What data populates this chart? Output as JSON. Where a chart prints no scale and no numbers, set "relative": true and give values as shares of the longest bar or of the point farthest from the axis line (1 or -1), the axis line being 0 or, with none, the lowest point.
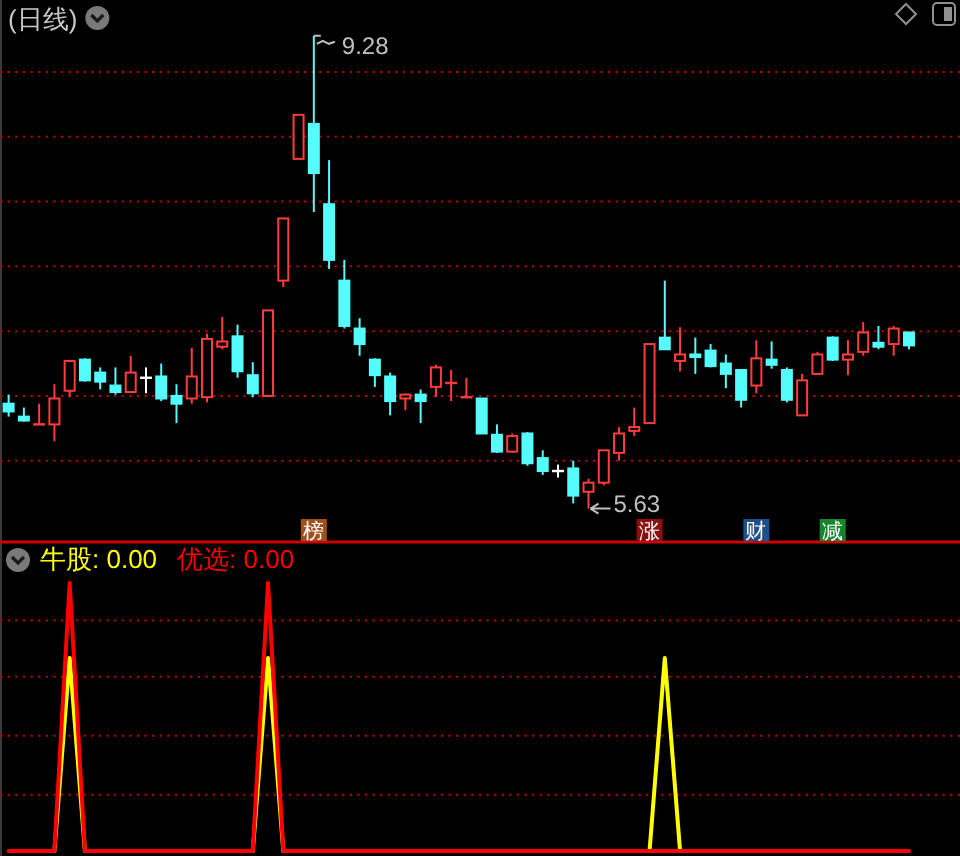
{
  "chart_data": [
    {
      "type": "candlestick",
      "title": "(日线)",
      "categories": [
        null,
        null,
        null,
        null,
        null,
        null,
        null,
        null,
        null,
        null,
        null,
        null,
        null,
        null,
        null,
        null,
        null,
        null,
        null,
        null,
        null,
        null,
        null,
        null,
        null,
        null,
        null,
        null,
        null,
        null,
        null,
        null,
        null,
        null,
        null,
        null,
        null,
        null,
        null,
        null,
        null,
        null,
        null,
        null,
        null,
        null,
        null,
        null,
        null,
        null,
        null,
        null,
        null,
        null,
        null,
        null,
        null,
        null,
        null,
        null
      ],
      "ohlc": [
        [
          6.44,
          6.51,
          6.34,
          6.38
        ],
        [
          6.34,
          6.41,
          6.3,
          6.31
        ],
        [
          6.28,
          6.44,
          6.28,
          6.28
        ],
        [
          6.28,
          6.59,
          6.15,
          6.48
        ],
        [
          6.54,
          6.77,
          6.49,
          6.77
        ],
        [
          6.78,
          6.79,
          6.61,
          6.62
        ],
        [
          6.68,
          6.72,
          6.55,
          6.61
        ],
        [
          6.58,
          6.72,
          6.51,
          6.53
        ],
        [
          6.53,
          6.81,
          6.53,
          6.68
        ],
        [
          6.64,
          6.72,
          6.52,
          6.64
        ],
        [
          6.65,
          6.75,
          6.46,
          6.48
        ],
        [
          6.5,
          6.59,
          6.29,
          6.44
        ],
        [
          6.48,
          6.87,
          6.44,
          6.65
        ],
        [
          6.49,
          6.98,
          6.45,
          6.94
        ],
        [
          6.88,
          7.11,
          6.86,
          6.92
        ],
        [
          6.96,
          7.05,
          6.64,
          6.69
        ],
        [
          6.66,
          6.76,
          6.49,
          6.52
        ],
        [
          6.5,
          7.16,
          6.5,
          7.16
        ],
        [
          7.39,
          7.87,
          7.34,
          7.87
        ],
        [
          8.33,
          8.67,
          8.33,
          8.67
        ],
        [
          8.6,
          9.28,
          7.92,
          8.22
        ],
        [
          7.98,
          8.32,
          7.48,
          7.55
        ],
        [
          7.39,
          7.55,
          7.02,
          7.04
        ],
        [
          7.02,
          7.1,
          6.81,
          6.9
        ],
        [
          6.78,
          6.79,
          6.57,
          6.66
        ],
        [
          6.65,
          6.68,
          6.35,
          6.46
        ],
        [
          6.48,
          6.52,
          6.39,
          6.51
        ],
        [
          6.51,
          6.55,
          6.29,
          6.46
        ],
        [
          6.57,
          6.74,
          6.49,
          6.72
        ],
        [
          6.6,
          6.7,
          6.46,
          6.6
        ],
        [
          6.49,
          6.64,
          6.49,
          6.49
        ],
        [
          6.48,
          6.48,
          6.21,
          6.21
        ],
        [
          6.2,
          6.28,
          6.06,
          6.07
        ],
        [
          6.07,
          6.21,
          6.06,
          6.19
        ],
        [
          6.21,
          6.22,
          5.96,
          5.98
        ],
        [
          6.02,
          6.08,
          5.89,
          5.92
        ],
        [
          5.92,
          5.97,
          5.87,
          5.92
        ],
        [
          5.94,
          6.0,
          5.67,
          5.73
        ],
        [
          5.76,
          5.86,
          5.63,
          5.83
        ],
        [
          5.83,
          6.08,
          5.81,
          6.08
        ],
        [
          6.06,
          6.26,
          6.0,
          6.21
        ],
        [
          6.23,
          6.41,
          6.19,
          6.26
        ],
        [
          6.29,
          6.9,
          6.29,
          6.9
        ],
        [
          6.95,
          7.39,
          6.86,
          6.86
        ],
        [
          6.77,
          7.03,
          6.69,
          6.82
        ],
        [
          6.82,
          6.95,
          6.67,
          6.8
        ],
        [
          6.85,
          6.9,
          6.72,
          6.73
        ],
        [
          6.75,
          6.82,
          6.56,
          6.67
        ],
        [
          6.7,
          6.7,
          6.41,
          6.47
        ],
        [
          6.58,
          6.93,
          6.52,
          6.79
        ],
        [
          6.78,
          6.92,
          6.71,
          6.74
        ],
        [
          6.7,
          6.72,
          6.45,
          6.47
        ],
        [
          6.35,
          6.67,
          6.35,
          6.62
        ],
        [
          6.67,
          6.84,
          6.67,
          6.82
        ],
        [
          6.95,
          6.96,
          6.77,
          6.78
        ],
        [
          6.78,
          6.93,
          6.66,
          6.82
        ],
        [
          6.84,
          7.07,
          6.81,
          6.99
        ],
        [
          6.91,
          7.04,
          6.86,
          6.88
        ],
        [
          6.9,
          7.04,
          6.81,
          7.02
        ],
        [
          6.99,
          6.99,
          6.86,
          6.89
        ]
      ],
      "colors": [
        "#54fcfc",
        "#54fcfc",
        "#ff3c3c",
        "#ff3c3c",
        "#ff3c3c",
        "#54fcfc",
        "#54fcfc",
        "#54fcfc",
        "#ff3c3c",
        "#ffffff",
        "#54fcfc",
        "#54fcfc",
        "#ff3c3c",
        "#ff3c3c",
        "#ff3c3c",
        "#54fcfc",
        "#54fcfc",
        "#ff3c3c",
        "#ff3c3c",
        "#ff3c3c",
        "#54fcfc",
        "#54fcfc",
        "#54fcfc",
        "#54fcfc",
        "#54fcfc",
        "#54fcfc",
        "#ff3c3c",
        "#54fcfc",
        "#ff3c3c",
        "#ff3c3c",
        "#ff3c3c",
        "#54fcfc",
        "#54fcfc",
        "#ff3c3c",
        "#54fcfc",
        "#54fcfc",
        "#ffffff",
        "#54fcfc",
        "#ff3c3c",
        "#ff3c3c",
        "#ff3c3c",
        "#ff3c3c",
        "#ff3c3c",
        "#54fcfc",
        "#ff3c3c",
        "#54fcfc",
        "#54fcfc",
        "#54fcfc",
        "#54fcfc",
        "#ff3c3c",
        "#54fcfc",
        "#54fcfc",
        "#ff3c3c",
        "#ff3c3c",
        "#54fcfc",
        "#ff3c3c",
        "#ff3c3c",
        "#54fcfc",
        "#ff3c3c",
        "#54fcfc"
      ],
      "yticks": [
        {
          "value": 6.0,
          "label": null
        },
        {
          "value": 6.5,
          "label": null
        },
        {
          "value": 7.0,
          "label": null
        },
        {
          "value": 7.5,
          "label": null
        },
        {
          "value": 8.0,
          "label": null
        },
        {
          "value": 8.5,
          "label": null
        },
        {
          "value": 9.0,
          "label": null
        }
      ],
      "grid": "y",
      "annotations": [
        "9.28",
        "5.63",
        "榜",
        "涨",
        "财",
        "减"
      ]
    },
    {
      "type": "line",
      "relative": true,
      "categories": [
        null,
        null,
        null,
        null,
        null,
        null,
        null,
        null,
        null,
        null,
        null,
        null,
        null,
        null,
        null,
        null,
        null,
        null,
        null,
        null,
        null,
        null,
        null,
        null,
        null,
        null,
        null,
        null,
        null,
        null,
        null,
        null,
        null,
        null,
        null,
        null,
        null,
        null,
        null,
        null,
        null,
        null,
        null,
        null,
        null,
        null,
        null,
        null,
        null,
        null,
        null,
        null,
        null,
        null,
        null,
        null,
        null,
        null,
        null,
        null
      ],
      "series": [
        {
          "name": "牛股: 0.00",
          "color": "#ffff00",
          "values": [
            null,
            null,
            null,
            0,
            0.72,
            0,
            null,
            null,
            null,
            null,
            null,
            null,
            null,
            null,
            null,
            null,
            0,
            0.72,
            0,
            null,
            null,
            null,
            null,
            null,
            null,
            null,
            null,
            null,
            null,
            null,
            null,
            null,
            null,
            null,
            null,
            null,
            null,
            null,
            null,
            null,
            null,
            null,
            0,
            0.72,
            0,
            null,
            null,
            null,
            null,
            null,
            null,
            null,
            null,
            null,
            null,
            null,
            null,
            null,
            null,
            null
          ]
        },
        {
          "name": "优选: 0.00",
          "color": "#ff0000",
          "values": [
            0,
            0,
            0,
            0,
            1,
            0,
            0,
            0,
            0,
            0,
            0,
            0,
            0,
            0,
            0,
            0,
            0,
            1,
            0,
            0,
            0,
            0,
            0,
            0,
            0,
            0,
            0,
            0,
            0,
            0,
            0,
            0,
            0,
            0,
            0,
            0,
            0,
            0,
            0,
            0,
            0,
            0,
            0,
            0,
            0,
            0,
            0,
            0,
            0,
            0,
            0,
            0,
            0,
            0,
            0,
            0,
            0,
            0,
            0,
            0
          ]
        }
      ],
      "ref_lines": [
        {
          "axis": "y",
          "value": 0.21,
          "color": "#b40000",
          "line_style": "dotted"
        },
        {
          "axis": "y",
          "value": 0.43,
          "color": "#b40000",
          "line_style": "dotted"
        },
        {
          "axis": "y",
          "value": 0.65,
          "color": "#b40000",
          "line_style": "dotted"
        },
        {
          "axis": "y",
          "value": 0.86,
          "color": "#b40000",
          "line_style": "dotted"
        }
      ],
      "legend": "top left"
    }
  ]
}
